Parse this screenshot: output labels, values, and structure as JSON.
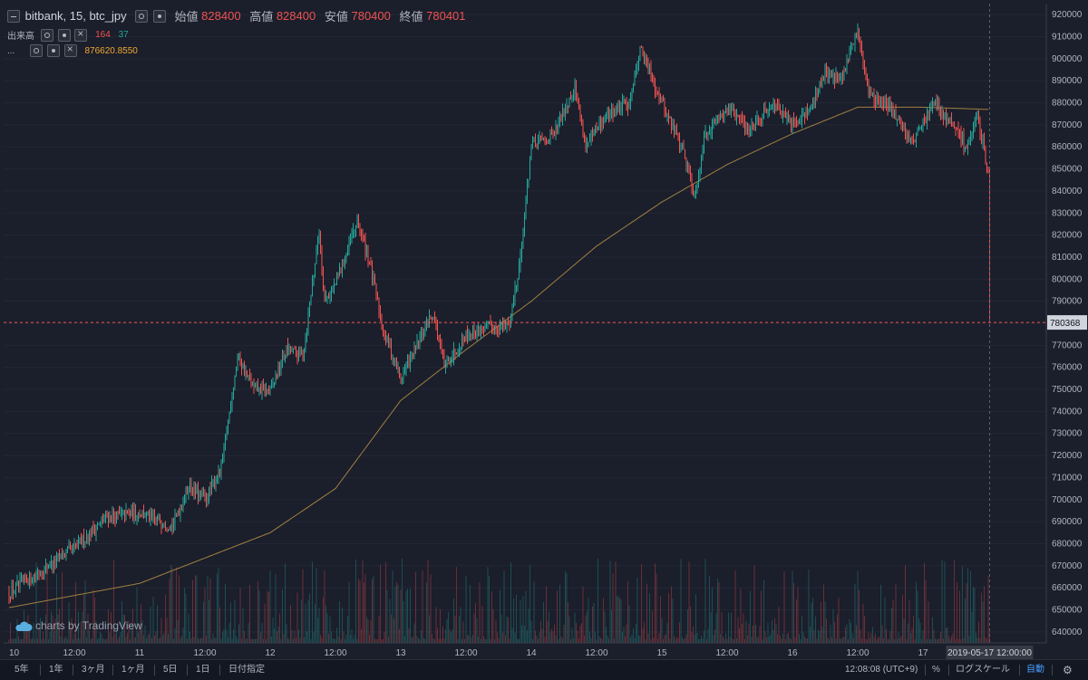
{
  "legend": {
    "symbol": "bitbank, 15, btc_jpy",
    "open_label": "始値",
    "open_value": "828400",
    "high_label": "高値",
    "high_value": "828400",
    "low_label": "安値",
    "low_value": "780400",
    "close_label": "終値",
    "close_value": "780401",
    "volume_label": "出来高",
    "volume_sell": "164",
    "volume_buy": "37",
    "ma_label": "...",
    "ma_value": "876620.8550"
  },
  "watermark": "charts by TradingView",
  "price_marker": "780368",
  "time_marker": "2019-05-17 12:00:00",
  "bottom_bar": {
    "ranges": [
      "5年",
      "1年",
      "3ヶ月",
      "1ヶ月",
      "5日",
      "1日",
      "日付指定"
    ],
    "clock": "12:08:08 (UTC+9)",
    "percent": "%",
    "log_scale": "ログスケール",
    "auto": "自動"
  },
  "colors": {
    "up": "#26a69a",
    "down": "#ef5350",
    "ma": "#a08040",
    "background": "#1b1e2b",
    "text": "#b2b5be",
    "auto_active": "#4a9eff"
  },
  "chart_data": {
    "type": "candlestick",
    "interval": "15",
    "pair": "btc_jpy",
    "yaxis_ticks": [
      640000,
      650000,
      660000,
      670000,
      680000,
      690000,
      700000,
      710000,
      720000,
      730000,
      740000,
      750000,
      760000,
      770000,
      780000,
      790000,
      800000,
      810000,
      820000,
      830000,
      840000,
      850000,
      860000,
      870000,
      880000,
      890000,
      900000,
      910000,
      920000
    ],
    "ylim": [
      635000,
      925000
    ],
    "xaxis_ticks": [
      "10",
      "12:00",
      "11",
      "12:00",
      "12",
      "12:00",
      "13",
      "12:00",
      "14",
      "12:00",
      "15",
      "12:00",
      "16",
      "12:00",
      "17"
    ],
    "price_path": [
      [
        "10",
        658000
      ],
      [
        "10 06:00",
        668000
      ],
      [
        "10 12:00",
        678000
      ],
      [
        "10 18:00",
        692000
      ],
      [
        "11 00:00",
        694000
      ],
      [
        "11 06:00",
        688000
      ],
      [
        "11 09:00",
        706000
      ],
      [
        "11 12:00",
        700000
      ],
      [
        "11 15:00",
        714000
      ],
      [
        "11 18:00",
        765000
      ],
      [
        "11 21:00",
        750000
      ],
      [
        "12 00:00",
        749000
      ],
      [
        "12 03:00",
        768000
      ],
      [
        "12 06:00",
        765000
      ],
      [
        "12 09:00",
        822000
      ],
      [
        "12 10:00",
        790000
      ],
      [
        "12 12:00",
        798000
      ],
      [
        "12 16:00",
        826000
      ],
      [
        "12 18:00",
        810000
      ],
      [
        "12 21:00",
        775000
      ],
      [
        "13 00:00",
        755000
      ],
      [
        "13 04:00",
        775000
      ],
      [
        "13 06:00",
        785000
      ],
      [
        "13 08:00",
        760000
      ],
      [
        "13 12:00",
        775000
      ],
      [
        "13 16:00",
        778000
      ],
      [
        "13 20:00",
        780000
      ],
      [
        "13 22:00",
        810000
      ],
      [
        "14 00:00",
        860000
      ],
      [
        "14 04:00",
        865000
      ],
      [
        "14 08:00",
        888000
      ],
      [
        "14 10:00",
        860000
      ],
      [
        "14 14:00",
        875000
      ],
      [
        "14 18:00",
        880000
      ],
      [
        "14 20:00",
        905000
      ],
      [
        "15 00:00",
        880000
      ],
      [
        "15 04:00",
        858000
      ],
      [
        "15 06:00",
        838000
      ],
      [
        "15 08:00",
        866000
      ],
      [
        "15 12:00",
        878000
      ],
      [
        "15 16:00",
        868000
      ],
      [
        "15 20:00",
        880000
      ],
      [
        "16 00:00",
        870000
      ],
      [
        "16 04:00",
        880000
      ],
      [
        "16 06:00",
        895000
      ],
      [
        "16 09:00",
        890000
      ],
      [
        "16 12:00",
        913000
      ],
      [
        "16 14:00",
        885000
      ],
      [
        "16 16:00",
        880000
      ],
      [
        "16 18:00",
        878000
      ],
      [
        "16 22:00",
        862000
      ],
      [
        "17 02:00",
        880000
      ],
      [
        "17 06:00",
        868000
      ],
      [
        "17 08:00",
        860000
      ],
      [
        "17 10:00",
        872000
      ],
      [
        "17 11:00",
        862000
      ],
      [
        "17 12:00",
        848000
      ],
      [
        "17 12:15",
        780368
      ]
    ],
    "ma_path": [
      [
        "10",
        651000
      ],
      [
        "11 00:00",
        662000
      ],
      [
        "12 00:00",
        685000
      ],
      [
        "12 12:00",
        705000
      ],
      [
        "13 00:00",
        745000
      ],
      [
        "13 12:00",
        768000
      ],
      [
        "14 00:00",
        790000
      ],
      [
        "14 12:00",
        815000
      ],
      [
        "15 00:00",
        835000
      ],
      [
        "15 12:00",
        852000
      ],
      [
        "16 00:00",
        866000
      ],
      [
        "16 12:00",
        878000
      ],
      [
        "17 00:00",
        878000
      ],
      [
        "17 12:00",
        877000
      ]
    ],
    "last_price": 780368
  }
}
